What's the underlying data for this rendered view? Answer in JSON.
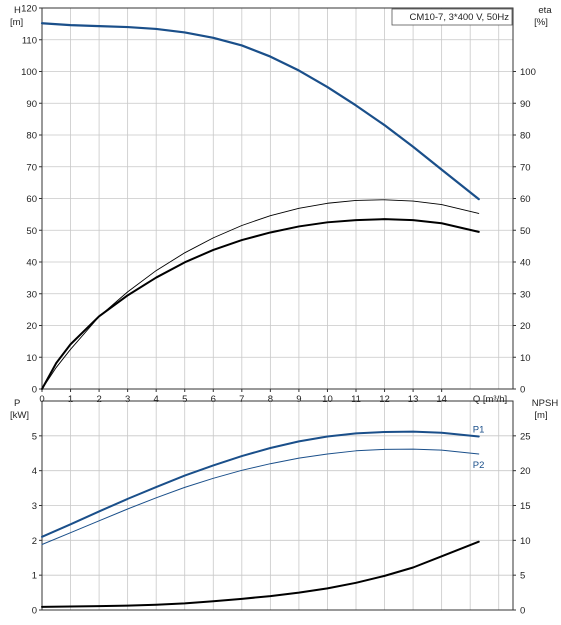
{
  "chart_data": [
    {
      "type": "line",
      "title": "CM10-7, 3*400 V, 50Hz",
      "xlabel": "Q [m³/h]",
      "xlim": [
        0,
        16.5
      ],
      "x_ticks": [
        "0",
        "1",
        "2",
        "3",
        "4",
        "5",
        "6",
        "7",
        "8",
        "9",
        "10",
        "11",
        "12",
        "13",
        "14"
      ],
      "left_axis": {
        "label_top": "H",
        "label_unit": "[m]",
        "ylim": [
          0,
          120
        ],
        "ticks": [
          "0",
          "10",
          "20",
          "30",
          "40",
          "50",
          "60",
          "70",
          "80",
          "90",
          "100",
          "110",
          "120"
        ]
      },
      "right_axis": {
        "label_top": "eta",
        "label_unit": "[%]",
        "ylim": [
          0,
          120
        ],
        "ticks": [
          "0",
          "10",
          "20",
          "30",
          "40",
          "50",
          "60",
          "70",
          "80",
          "90",
          "100"
        ]
      },
      "grid": true,
      "series": [
        {
          "axis": "left",
          "color": "#1a4f8a",
          "width": 2.2,
          "x": [
            0,
            1,
            2,
            3,
            4,
            5,
            6,
            7,
            8,
            9,
            10,
            11,
            12,
            13,
            14,
            15.3
          ],
          "y": [
            115.2,
            114.6,
            114.3,
            114.0,
            113.4,
            112.3,
            110.6,
            108.2,
            104.7,
            100.3,
            95.1,
            89.3,
            83.1,
            76.3,
            69.1,
            59.8
          ]
        },
        {
          "axis": "right",
          "color": "#000000",
          "width": 0.9,
          "x": [
            0,
            0.5,
            1,
            2,
            3,
            4,
            5,
            6,
            7,
            8,
            9,
            10,
            11,
            12,
            13,
            14,
            15.3
          ],
          "y": [
            0,
            6.8,
            12.5,
            22.8,
            30.6,
            37.3,
            42.9,
            47.6,
            51.5,
            54.6,
            56.9,
            58.5,
            59.4,
            59.6,
            59.2,
            58.1,
            55.3
          ]
        },
        {
          "axis": "right",
          "color": "#000000",
          "width": 2.0,
          "x": [
            0,
            0.5,
            1,
            2,
            3,
            4,
            5,
            6,
            7,
            8,
            9,
            10,
            11,
            12,
            13,
            14,
            15.3
          ],
          "y": [
            0,
            8.2,
            14.1,
            22.9,
            29.5,
            35.1,
            39.9,
            43.8,
            46.9,
            49.3,
            51.2,
            52.5,
            53.2,
            53.5,
            53.2,
            52.2,
            49.5
          ]
        }
      ]
    },
    {
      "type": "line",
      "xlim": [
        0,
        16.5
      ],
      "left_axis": {
        "label_top": "P",
        "label_unit": "[kW]",
        "ylim": [
          0,
          6
        ],
        "ticks": [
          "0",
          "1",
          "2",
          "3",
          "4",
          "5"
        ]
      },
      "right_axis": {
        "label_top": "NPSH",
        "label_unit": "[m]",
        "ylim": [
          0,
          30
        ],
        "ticks": [
          "0",
          "5",
          "10",
          "15",
          "20",
          "25"
        ]
      },
      "grid": true,
      "series": [
        {
          "name": "P1",
          "axis": "left",
          "color": "#1a4f8a",
          "width": 2.0,
          "x": [
            0,
            1,
            2,
            3,
            4,
            5,
            6,
            7,
            8,
            9,
            10,
            11,
            12,
            13,
            14,
            15.3
          ],
          "y": [
            2.1,
            2.46,
            2.83,
            3.19,
            3.53,
            3.86,
            4.15,
            4.42,
            4.65,
            4.84,
            4.98,
            5.07,
            5.11,
            5.12,
            5.09,
            4.98
          ]
        },
        {
          "name": "P2",
          "axis": "left",
          "color": "#1a4f8a",
          "width": 1.0,
          "x": [
            0,
            1,
            2,
            3,
            4,
            5,
            6,
            7,
            8,
            9,
            10,
            11,
            12,
            13,
            14,
            15.3
          ],
          "y": [
            1.88,
            2.22,
            2.56,
            2.9,
            3.22,
            3.52,
            3.78,
            4.01,
            4.2,
            4.36,
            4.48,
            4.57,
            4.61,
            4.62,
            4.59,
            4.48
          ]
        },
        {
          "axis": "right",
          "color": "#000000",
          "width": 2.0,
          "x": [
            0,
            1,
            2,
            3,
            4,
            5,
            6,
            7,
            8,
            9,
            10,
            11,
            12,
            13,
            14,
            15.3
          ],
          "y": [
            0.45,
            0.5,
            0.55,
            0.62,
            0.75,
            0.95,
            1.25,
            1.6,
            2.0,
            2.5,
            3.1,
            3.9,
            4.9,
            6.1,
            7.7,
            9.8
          ]
        }
      ]
    }
  ]
}
